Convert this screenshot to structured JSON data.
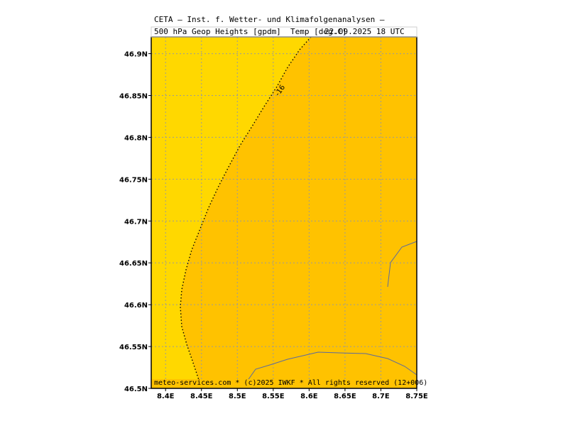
{
  "header": {
    "title_line1": "CETA — Inst. f. Wetter- und Klimafolgenanalysen —",
    "title_line2": "500 hPa Geop Heights [gpdm]  Temp [deg.C]",
    "date": "22.09.2025 18 UTC"
  },
  "footer": {
    "credit": "meteo-services.com * (c)2025 IWKF * All rights reserved (12+006)"
  },
  "colors": {
    "warm_region": "#ffc200",
    "cool_region": "#ffd800",
    "grid": "#9a9a9a",
    "contour": "#000000",
    "coastline": "#5a6aa0"
  },
  "map": {
    "lon_range": [
      8.38,
      8.75
    ],
    "lat_range": [
      46.5,
      46.92
    ],
    "lon_ticks": [
      "8.4E",
      "8.45E",
      "8.5E",
      "8.55E",
      "8.6E",
      "8.65E",
      "8.7E",
      "8.75E"
    ],
    "lat_ticks": [
      "46.9N",
      "46.85N",
      "46.8N",
      "46.75N",
      "46.7N",
      "46.65N",
      "46.6N",
      "46.55N",
      "46.5N"
    ],
    "lon_tick_values": [
      8.4,
      8.45,
      8.5,
      8.55,
      8.6,
      8.65,
      8.7,
      8.75
    ],
    "lat_tick_values": [
      46.9,
      46.85,
      46.8,
      46.75,
      46.7,
      46.65,
      46.6,
      46.55,
      46.5
    ],
    "contour_label": "-16"
  }
}
